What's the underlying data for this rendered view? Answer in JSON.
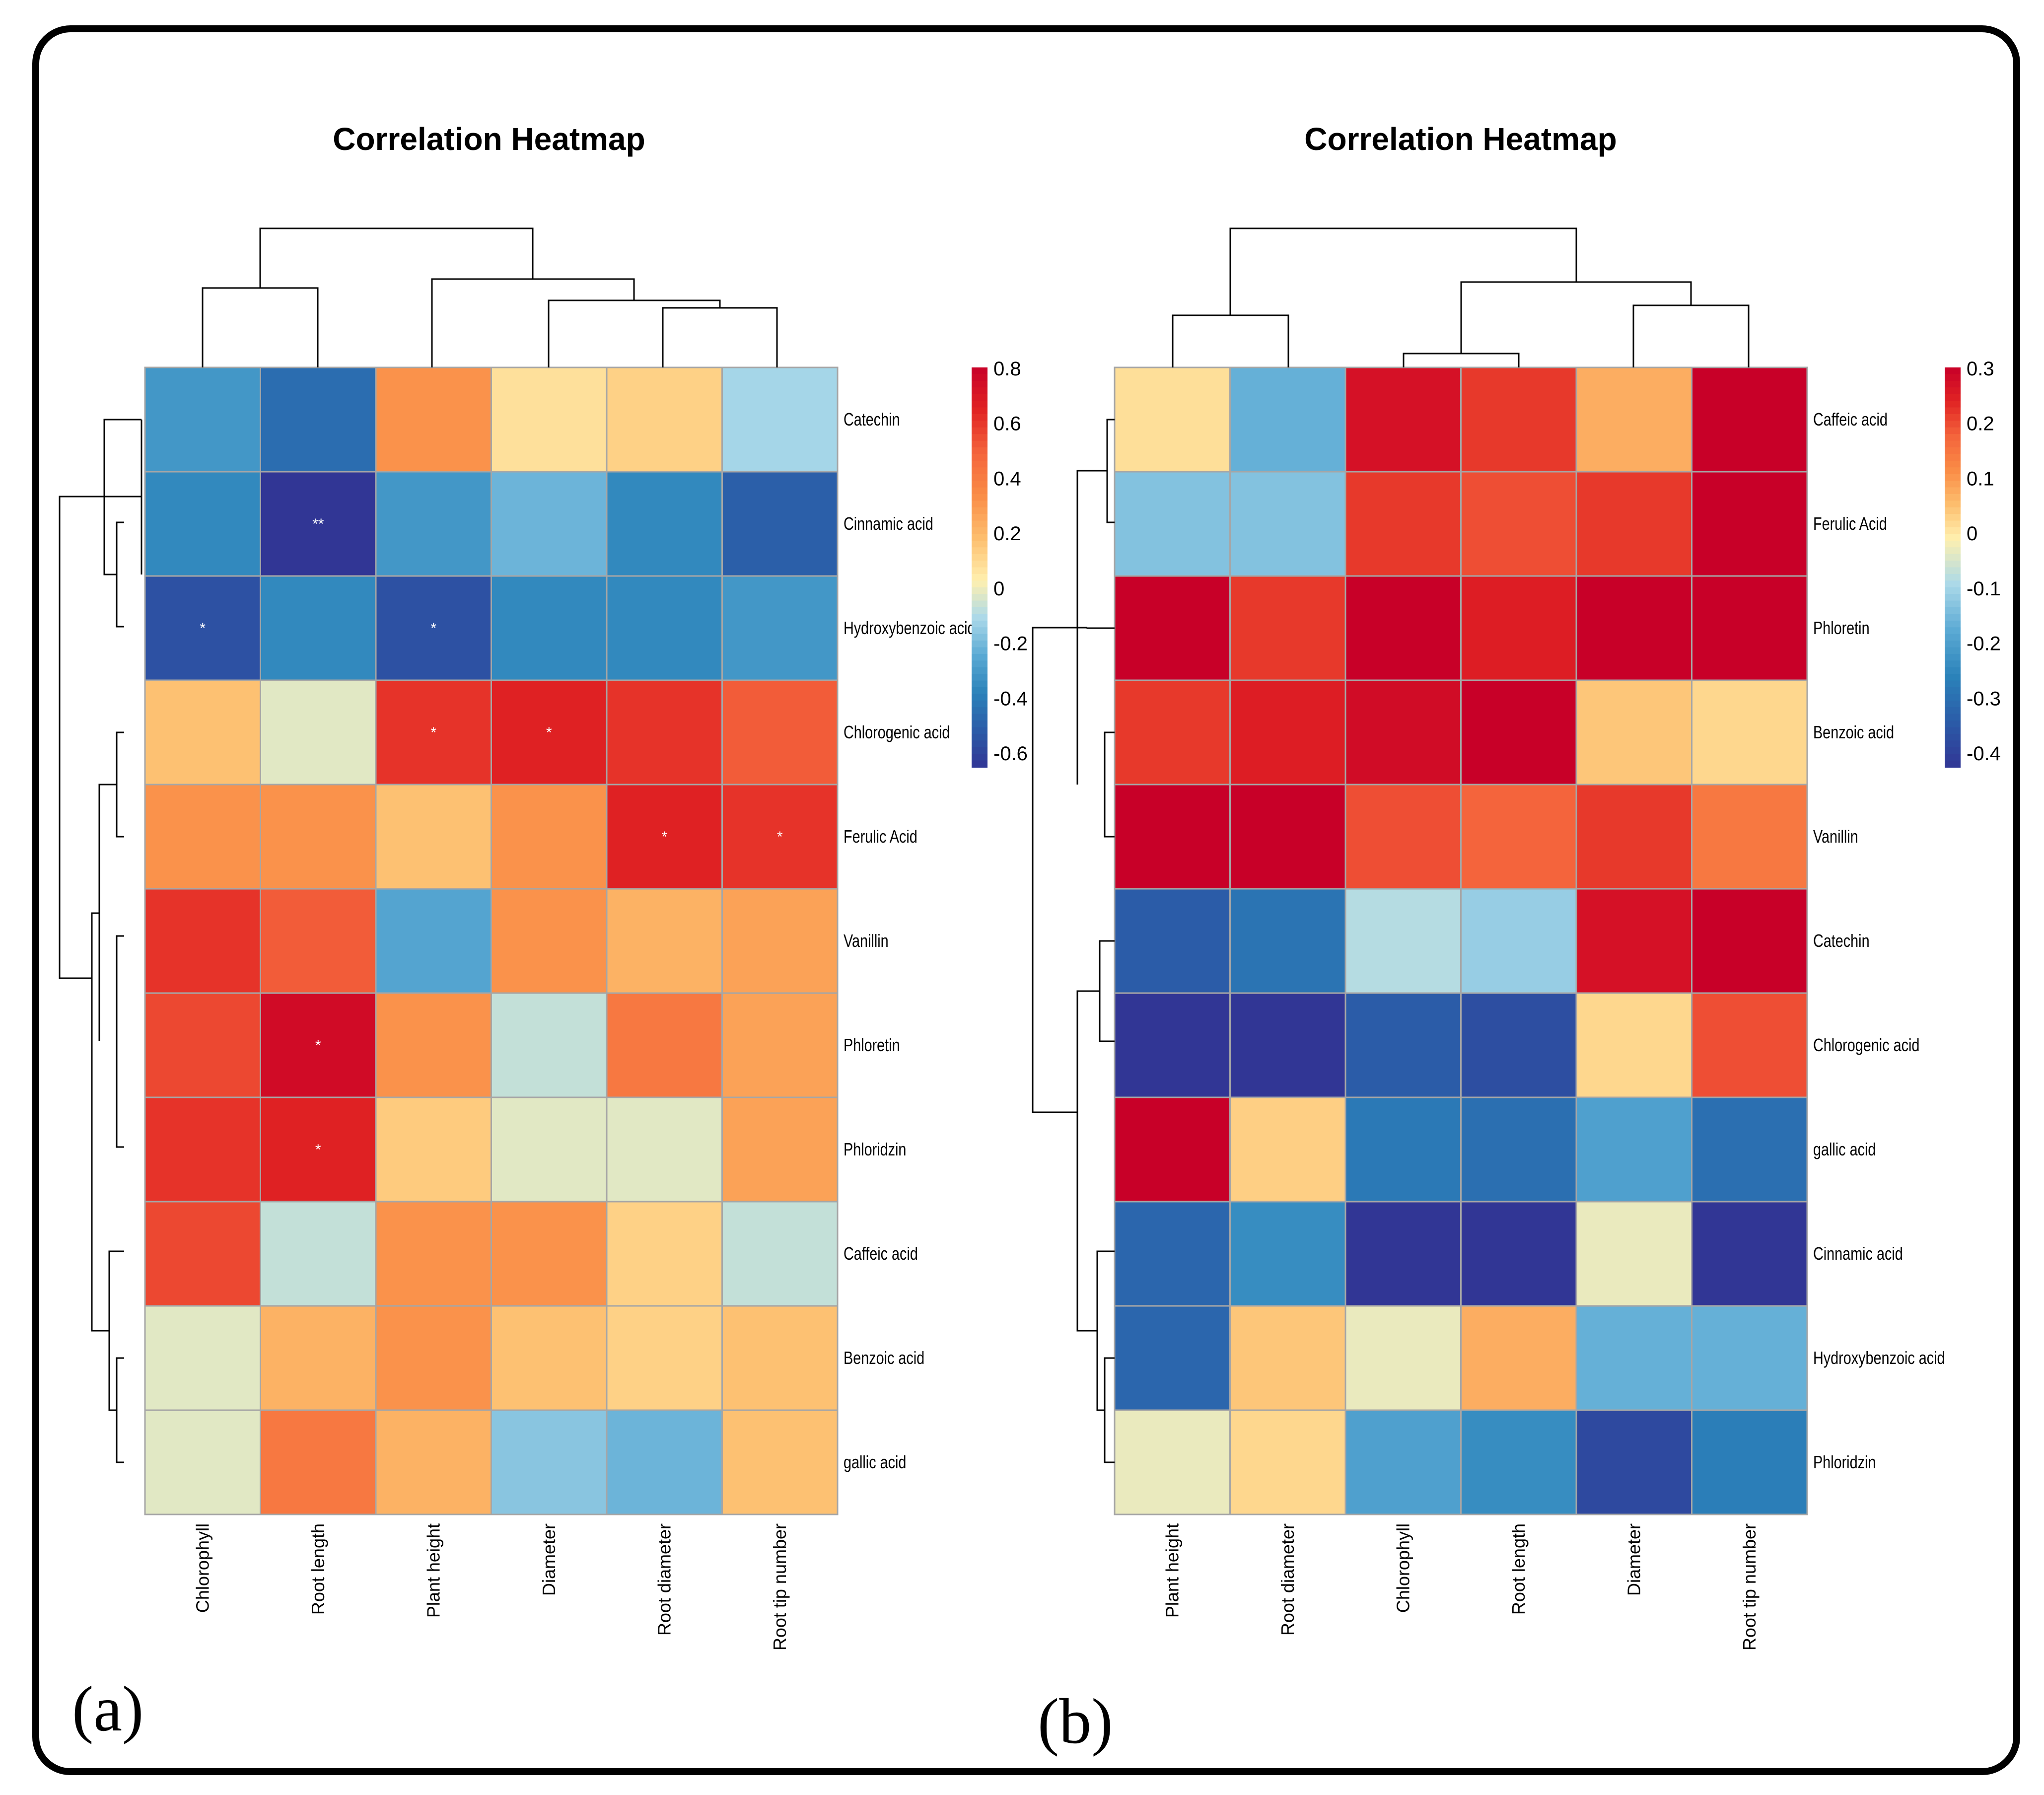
{
  "panels": [
    {
      "label": "(a)",
      "colorbar_ticks": [
        "0.8",
        "0.6",
        "0.4",
        "0.2",
        "0",
        "-0.2",
        "-0.4",
        "-0.6"
      ],
      "colorbar_range": [
        -0.7,
        0.8
      ]
    },
    {
      "label": "(b)",
      "colorbar_ticks": [
        "0.3",
        "0.2",
        "0.1",
        "0",
        "-0.1",
        "-0.2",
        "-0.3",
        "-0.4"
      ],
      "colorbar_range": [
        -0.4,
        0.3
      ]
    }
  ],
  "chart_data": [
    {
      "type": "heatmap",
      "title": "Correlation Heatmap",
      "columns": [
        "Chlorophyll",
        "Root length",
        "Plant height",
        "Diameter",
        "Root diameter",
        "Root tip number"
      ],
      "rows": [
        "Catechin",
        "Cinnamic acid",
        "Hydroxybenzoic acid",
        "Chlorogenic acid",
        "Ferulic Acid",
        "Vanillin",
        "Phloretin",
        "Phloridzin",
        "Caffeic acid",
        "Benzoic acid",
        "gallic acid"
      ],
      "values": [
        [
          -0.35,
          -0.5,
          0.3,
          0.05,
          0.1,
          -0.15
        ],
        [
          -0.4,
          -0.7,
          -0.35,
          -0.25,
          -0.4,
          -0.55
        ],
        [
          -0.6,
          -0.4,
          -0.6,
          -0.4,
          -0.4,
          -0.35
        ],
        [
          0.15,
          -0.05,
          0.6,
          0.65,
          0.6,
          0.5
        ],
        [
          0.3,
          0.3,
          0.15,
          0.3,
          0.65,
          0.6
        ],
        [
          0.6,
          0.5,
          -0.3,
          0.3,
          0.2,
          0.25
        ],
        [
          0.55,
          0.75,
          0.3,
          -0.1,
          0.4,
          0.25
        ],
        [
          0.6,
          0.65,
          0.12,
          -0.05,
          -0.05,
          0.25
        ],
        [
          0.55,
          -0.1,
          0.3,
          0.3,
          0.1,
          -0.1
        ],
        [
          -0.05,
          0.2,
          0.3,
          0.15,
          0.1,
          0.15
        ],
        [
          -0.05,
          0.4,
          0.2,
          -0.2,
          -0.25,
          0.15
        ]
      ],
      "significance": [
        [
          "",
          "",
          "",
          "",
          "",
          ""
        ],
        [
          "",
          "**",
          "",
          "",
          "",
          ""
        ],
        [
          "*",
          "",
          "*",
          "",
          "",
          ""
        ],
        [
          "",
          "",
          "*",
          "*",
          "",
          ""
        ],
        [
          "",
          "",
          "",
          "",
          "*",
          "*"
        ],
        [
          "",
          "",
          "",
          "",
          "",
          ""
        ],
        [
          "",
          "*",
          "",
          "",
          "",
          ""
        ],
        [
          "",
          "*",
          "",
          "",
          "",
          ""
        ],
        [
          "",
          "",
          "",
          "",
          "",
          ""
        ],
        [
          "",
          "",
          "",
          "",
          "",
          ""
        ],
        [
          "",
          "",
          "",
          "",
          "",
          ""
        ]
      ],
      "value_range": [
        -0.7,
        0.8
      ]
    },
    {
      "type": "heatmap",
      "title": "Correlation Heatmap",
      "columns": [
        "Plant height",
        "Root diameter",
        "Chlorophyll",
        "Root length",
        "Diameter",
        "Root tip number"
      ],
      "rows": [
        "Caffeic acid",
        "Ferulic Acid",
        "Phloretin",
        "Benzoic acid",
        "Vanillin",
        "Catechin",
        "Chlorogenic acid",
        "gallic acid",
        "Cinnamic acid",
        "Hydroxybenzoic acid",
        "Phloridzin"
      ],
      "values": [
        [
          0.02,
          -0.15,
          0.27,
          0.22,
          0.08,
          0.35
        ],
        [
          -0.12,
          -0.12,
          0.22,
          0.2,
          0.22,
          0.35
        ],
        [
          0.35,
          0.22,
          0.32,
          0.25,
          0.35,
          0.33
        ],
        [
          0.22,
          0.25,
          0.28,
          0.33,
          0.05,
          0.03
        ],
        [
          0.35,
          0.36,
          0.2,
          0.18,
          0.22,
          0.15
        ],
        [
          -0.32,
          -0.27,
          -0.07,
          -0.1,
          0.27,
          0.32
        ],
        [
          -0.4,
          -0.4,
          -0.32,
          -0.35,
          0.03,
          0.2
        ],
        [
          0.35,
          0.04,
          -0.26,
          -0.28,
          -0.18,
          -0.28
        ],
        [
          -0.3,
          -0.22,
          -0.4,
          -0.4,
          -0.02,
          -0.4
        ],
        [
          -0.3,
          0.05,
          -0.02,
          0.08,
          -0.15,
          -0.15
        ],
        [
          -0.02,
          0.03,
          -0.18,
          -0.22,
          -0.36,
          -0.25
        ]
      ],
      "value_range": [
        -0.4,
        0.3
      ]
    }
  ]
}
